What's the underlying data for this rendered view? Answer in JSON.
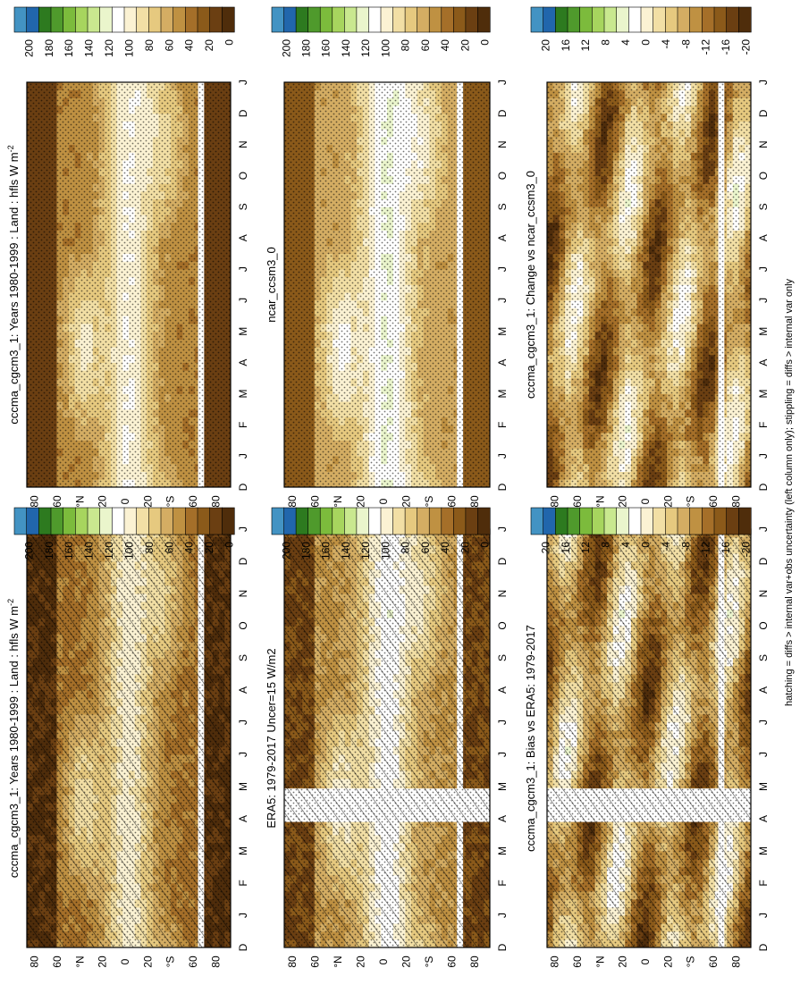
{
  "figure": {
    "footer": "hatching = diffs > internal var+obs uncertainty (left column only); stippling = diffs > internal var only",
    "palettes": {
      "absolute": [
        "#4f2d0b",
        "#6b3f12",
        "#8b5a1a",
        "#a56f29",
        "#bf9142",
        "#d4ad63",
        "#e6c97f",
        "#f2dfa5",
        "#fbf2d3",
        "#ffffff",
        "#eaf5cc",
        "#c9e88f",
        "#a7d55e",
        "#7cbb3c",
        "#4f9a2c",
        "#2d7a1f",
        "#2166ac",
        "#4393c3"
      ],
      "difference": [
        "#4f2d0b",
        "#6b3f12",
        "#8b5a1a",
        "#a56f29",
        "#bf9142",
        "#d4ad63",
        "#e6c97f",
        "#f2dfa5",
        "#fbf2d3",
        "#ffffff",
        "#eaf5cc",
        "#c9e88f",
        "#a7d55e",
        "#7cbb3c",
        "#4f9a2c",
        "#2d7a1f",
        "#2166ac",
        "#4393c3"
      ]
    }
  },
  "panels": [
    {
      "id": "model_left",
      "title": "cccma_cgcm3_1: Years 1980-1999 : Land : hfls W m",
      "title_superscript": "-2",
      "colorbar_ticks": [
        "200",
        "180",
        "160",
        "140",
        "120",
        "100",
        "80",
        "60",
        "40",
        "20",
        "0"
      ],
      "hatched": true
    },
    {
      "id": "model_right",
      "title": "cccma_cgcm3_1: Years 1980-1999 : Land : hfls W m",
      "title_superscript": "-2",
      "colorbar_ticks": [
        "200",
        "180",
        "160",
        "140",
        "120",
        "100",
        "80",
        "60",
        "40",
        "20",
        "0"
      ],
      "hatched": false
    },
    {
      "id": "obs_left",
      "title": "ERA5: 1979-2017 Uncer=15 W/m2",
      "title_superscript": "",
      "colorbar_ticks": [
        "200",
        "180",
        "160",
        "140",
        "120",
        "100",
        "80",
        "60",
        "40",
        "20",
        "0"
      ],
      "hatched": true
    },
    {
      "id": "ref_right",
      "title": "ncar_ccsm3_0",
      "title_superscript": "",
      "colorbar_ticks": [
        "200",
        "180",
        "160",
        "140",
        "120",
        "100",
        "80",
        "60",
        "40",
        "20",
        "0"
      ],
      "hatched": false
    },
    {
      "id": "bias_left",
      "title": "cccma_cgcm3_1: Bias vs ERA5: 1979-2017",
      "title_superscript": "",
      "colorbar_ticks": [
        "20",
        "16",
        "12",
        "8",
        "4",
        "0",
        "-4",
        "-8",
        "-12",
        "-16",
        "-20"
      ],
      "hatched": true
    },
    {
      "id": "change_right",
      "title": "cccma_cgcm3_1: Change vs ncar_ccsm3_0",
      "title_superscript": "",
      "colorbar_ticks": [
        "20",
        "16",
        "12",
        "8",
        "4",
        "0",
        "-4",
        "-8",
        "-12",
        "-16",
        "-20"
      ],
      "hatched": false
    }
  ],
  "chart_data": [
    {
      "type": "heatmap",
      "title": "cccma_cgcm3_1: Years 1980-1999 : Land : hfls W m-2",
      "x_ticks": [
        "D",
        "J",
        "F",
        "M",
        "A",
        "M",
        "J",
        "J",
        "A",
        "S",
        "O",
        "N",
        "D",
        "J"
      ],
      "y_ticks": [
        "80",
        "60",
        "°N",
        "20",
        "0",
        "20",
        "°S",
        "60",
        "80"
      ],
      "colorbar": {
        "min": 0,
        "max": 200,
        "ticks": [
          "200",
          "180",
          "160",
          "140",
          "120",
          "100",
          "80",
          "60",
          "40",
          "20",
          "0"
        ]
      }
    },
    {
      "type": "heatmap",
      "title": "cccma_cgcm3_1: Years 1980-1999 : Land : hfls W m-2",
      "x_ticks": [
        "D",
        "J",
        "F",
        "M",
        "A",
        "M",
        "J",
        "J",
        "A",
        "S",
        "O",
        "N",
        "D",
        "J"
      ],
      "y_ticks": [
        "80",
        "60",
        "°N",
        "20",
        "0",
        "20",
        "°S",
        "60",
        "80"
      ],
      "colorbar": {
        "min": 0,
        "max": 200,
        "ticks": [
          "200",
          "180",
          "160",
          "140",
          "120",
          "100",
          "80",
          "60",
          "40",
          "20",
          "0"
        ]
      }
    },
    {
      "type": "heatmap",
      "title": "ERA5: 1979-2017 Uncer=15 W/m2",
      "x_ticks": [
        "D",
        "J",
        "F",
        "M",
        "A",
        "M",
        "J",
        "J",
        "A",
        "S",
        "O",
        "N",
        "D",
        "J"
      ],
      "y_ticks": [
        "80",
        "60",
        "°N",
        "20",
        "0",
        "20",
        "°S",
        "60",
        "80"
      ],
      "colorbar": {
        "min": 0,
        "max": 200,
        "ticks": [
          "200",
          "180",
          "160",
          "140",
          "120",
          "100",
          "80",
          "60",
          "40",
          "20",
          "0"
        ]
      }
    },
    {
      "type": "heatmap",
      "title": "ncar_ccsm3_0",
      "x_ticks": [
        "D",
        "J",
        "F",
        "M",
        "A",
        "M",
        "J",
        "J",
        "A",
        "S",
        "O",
        "N",
        "D",
        "J"
      ],
      "y_ticks": [
        "80",
        "60",
        "°N",
        "20",
        "0",
        "20",
        "°S",
        "60",
        "80"
      ],
      "colorbar": {
        "min": 0,
        "max": 200,
        "ticks": [
          "200",
          "180",
          "160",
          "140",
          "120",
          "100",
          "80",
          "60",
          "40",
          "20",
          "0"
        ]
      }
    },
    {
      "type": "heatmap",
      "title": "cccma_cgcm3_1: Bias vs ERA5: 1979-2017",
      "x_ticks": [
        "D",
        "J",
        "F",
        "M",
        "A",
        "M",
        "J",
        "J",
        "A",
        "S",
        "O",
        "N",
        "D",
        "J"
      ],
      "y_ticks": [
        "80",
        "60",
        "°N",
        "20",
        "0",
        "20",
        "°S",
        "60",
        "80"
      ],
      "colorbar": {
        "min": -20,
        "max": 20,
        "ticks": [
          "20",
          "16",
          "12",
          "8",
          "4",
          "0",
          "-4",
          "-8",
          "-12",
          "-16",
          "-20"
        ]
      }
    },
    {
      "type": "heatmap",
      "title": "cccma_cgcm3_1: Change vs ncar_ccsm3_0",
      "x_ticks": [
        "D",
        "J",
        "F",
        "M",
        "A",
        "M",
        "J",
        "J",
        "A",
        "S",
        "O",
        "N",
        "D",
        "J"
      ],
      "y_ticks": [
        "80",
        "60",
        "°N",
        "20",
        "0",
        "20",
        "°S",
        "60",
        "80"
      ],
      "colorbar": {
        "min": -20,
        "max": 20,
        "ticks": [
          "20",
          "16",
          "12",
          "8",
          "4",
          "0",
          "-4",
          "-8",
          "-12",
          "-16",
          "-20"
        ]
      }
    }
  ]
}
